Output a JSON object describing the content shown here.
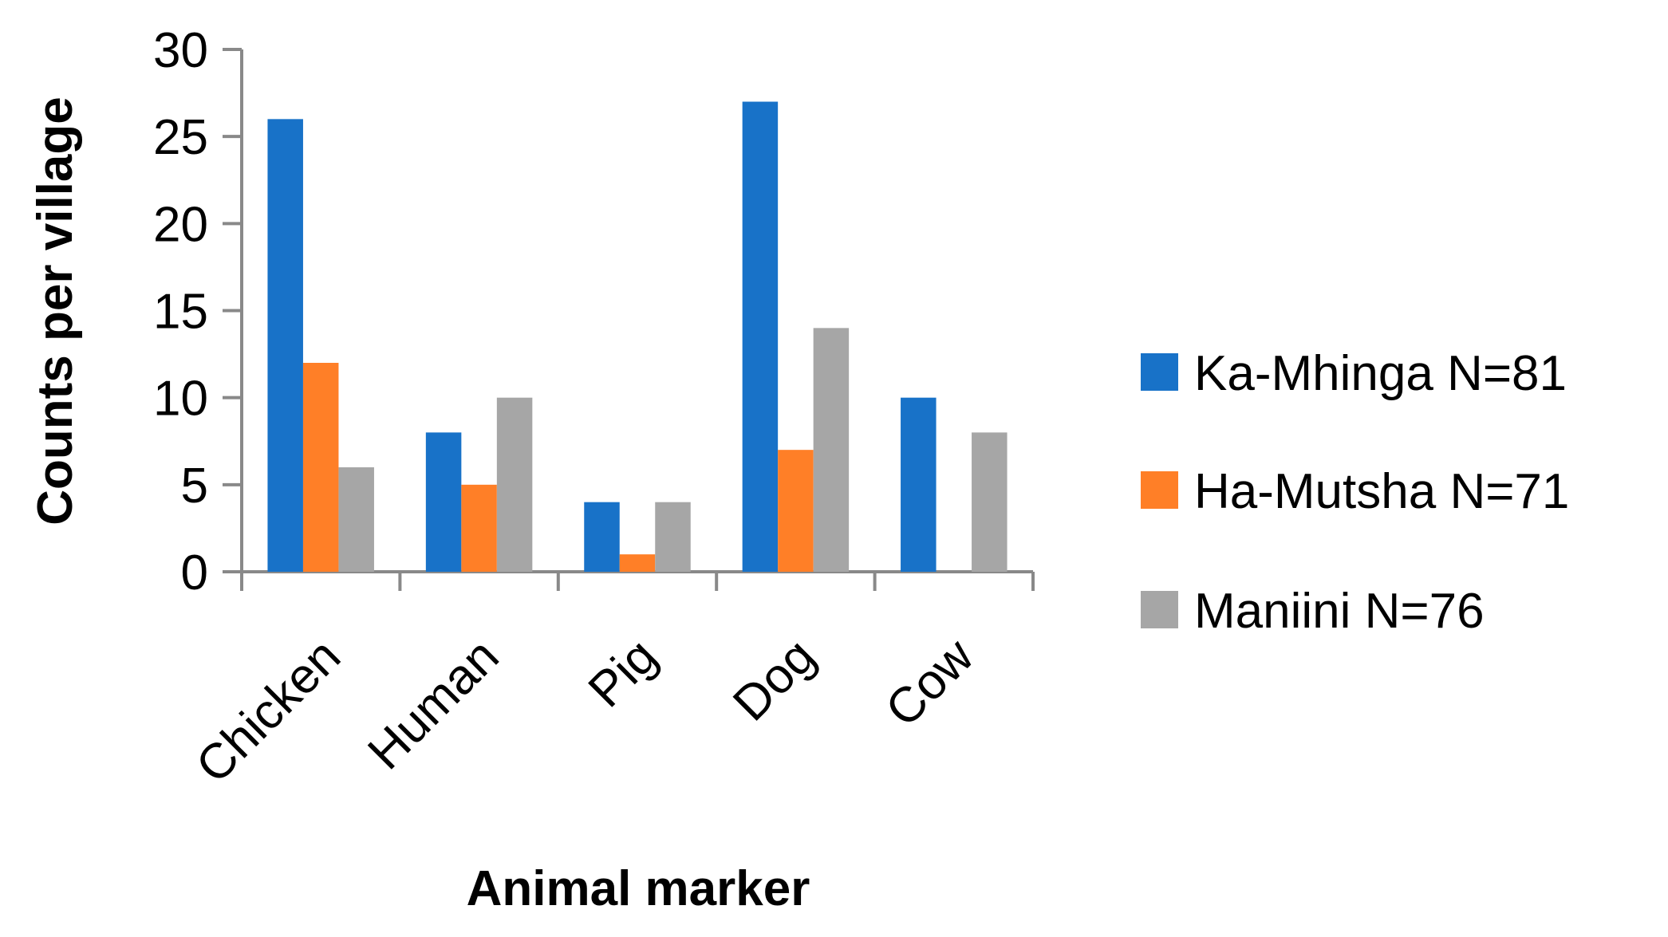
{
  "chart_data": {
    "type": "bar",
    "title": "",
    "xlabel": "Animal marker",
    "ylabel": "Counts per village",
    "ylim": [
      0,
      30
    ],
    "yticks": [
      0,
      5,
      10,
      15,
      20,
      25,
      30
    ],
    "grid": false,
    "legend_position": "right",
    "categories": [
      "Chicken",
      "Human",
      "Pig",
      "Dog",
      "Cow"
    ],
    "series": [
      {
        "name": "Ka-Mhinga N=81",
        "color": "#1872C8",
        "values": [
          26,
          8,
          4,
          27,
          10
        ]
      },
      {
        "name": "Ha-Mutsha N=71",
        "color": "#FF7F27",
        "values": [
          12,
          5,
          1,
          7,
          0
        ]
      },
      {
        "name": "Maniini N=76",
        "color": "#A6A6A6",
        "values": [
          6,
          10,
          4,
          14,
          8
        ]
      }
    ]
  },
  "colors": {
    "axis": "#898989",
    "text": "#000000",
    "background": "#FFFFFF"
  }
}
